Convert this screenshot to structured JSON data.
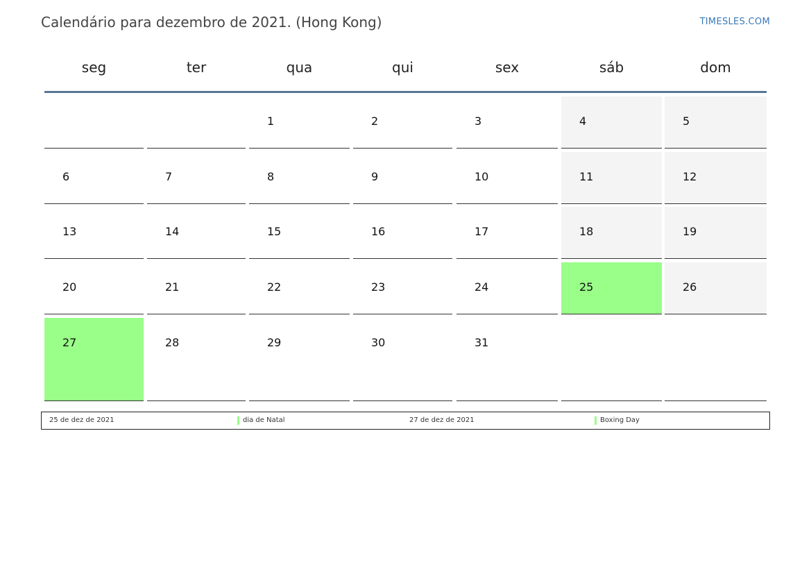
{
  "title": "Calendário para dezembro de 2021. (Hong Kong)",
  "site": "TIMESLES.COM",
  "weekdays": [
    "seg",
    "ter",
    "qua",
    "qui",
    "sex",
    "sáb",
    "dom"
  ],
  "weeks": [
    [
      null,
      null,
      "1",
      "2",
      "3",
      "4",
      "5"
    ],
    [
      "6",
      "7",
      "8",
      "9",
      "10",
      "11",
      "12"
    ],
    [
      "13",
      "14",
      "15",
      "16",
      "17",
      "18",
      "19"
    ],
    [
      "20",
      "21",
      "22",
      "23",
      "24",
      "25",
      "26"
    ],
    [
      "27",
      "28",
      "29",
      "30",
      "31",
      null,
      null
    ]
  ],
  "holiday_days": [
    "25",
    "27"
  ],
  "colors": {
    "holiday": "#99ff88",
    "weekend": "#f4f4f4",
    "header_line": "#5a7596",
    "site_link": "#3a7ab8"
  },
  "legend": [
    {
      "date": "25 de dez de 2021",
      "name": "dia de Natal"
    },
    {
      "date": "27 de dez de 2021",
      "name": "Boxing Day"
    }
  ]
}
